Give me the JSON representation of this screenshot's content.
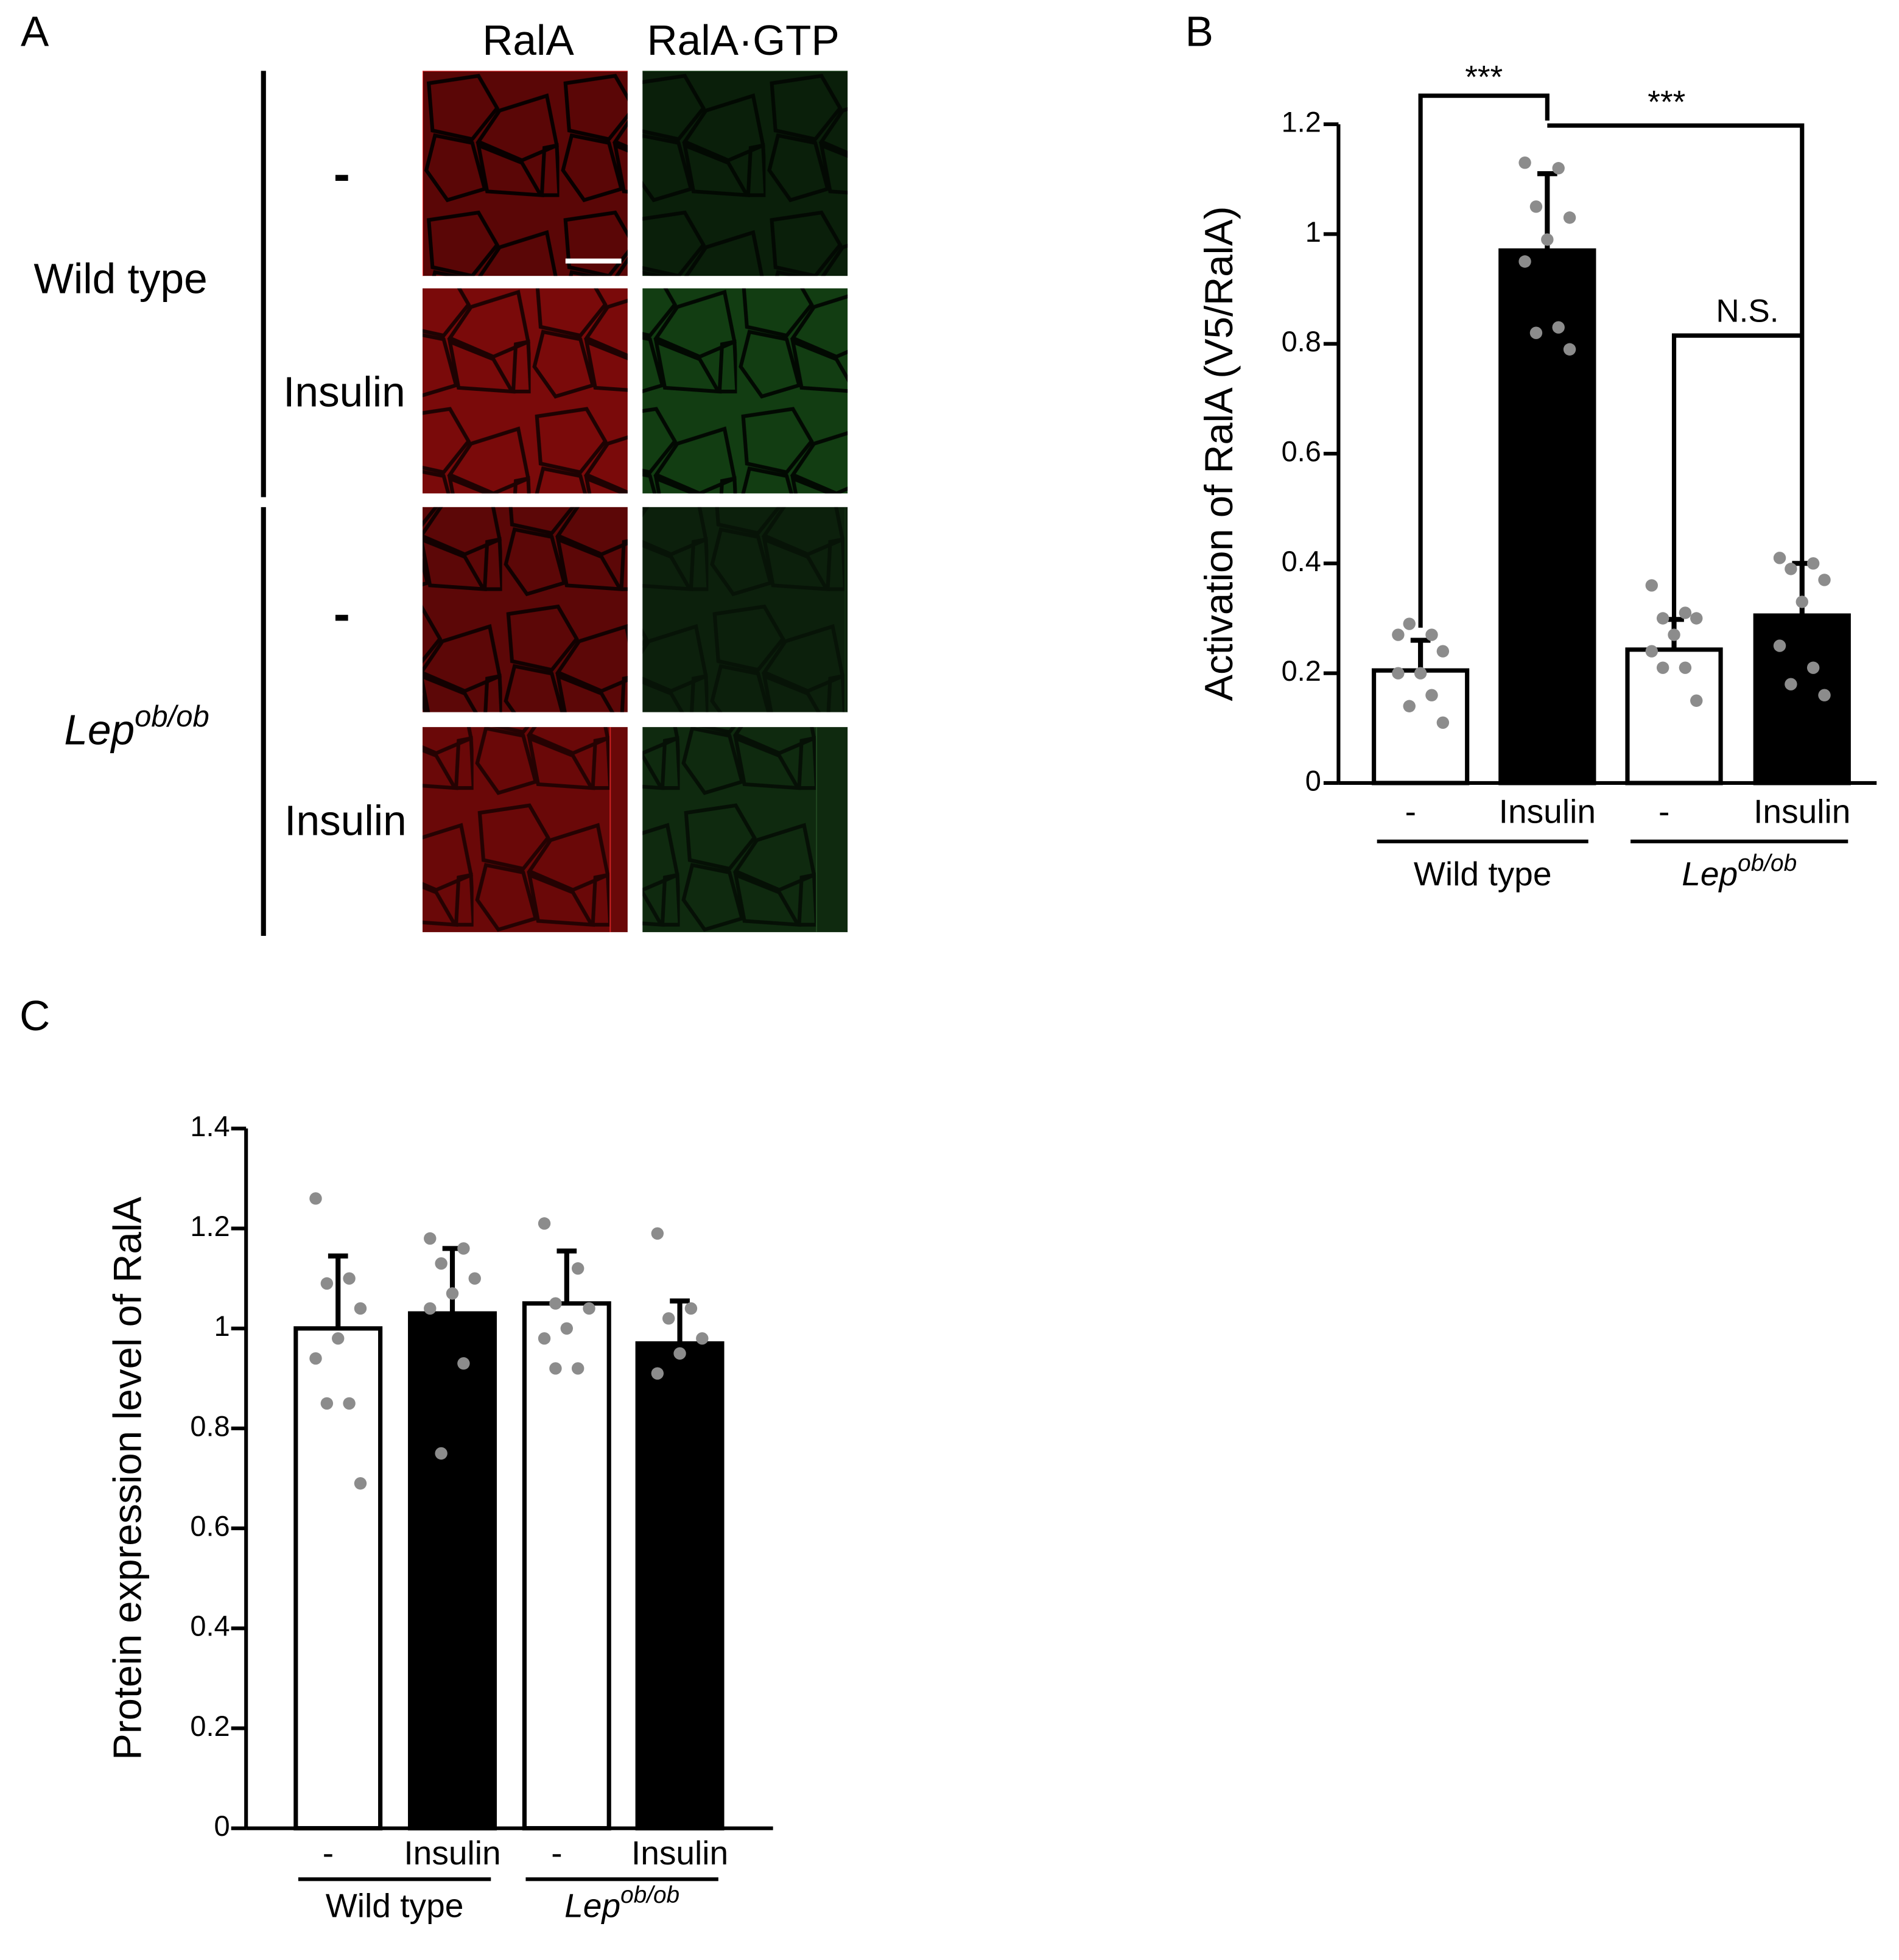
{
  "panel_a": {
    "panel": "A",
    "columns": [
      "RalA",
      "RalA·GTP"
    ],
    "groups": [
      {
        "label": "Wild type",
        "rows": [
          "-",
          "Insulin"
        ]
      },
      {
        "label": "Lep",
        "label_sup": "ob/ob",
        "rows": [
          "-",
          "Insulin"
        ]
      }
    ]
  },
  "chart_data": [
    {
      "type": "bar",
      "panel": "B",
      "y_label": "Activation of RalA (V5/RalA)",
      "categories": [
        "-",
        "Insulin",
        "-",
        "Insulin"
      ],
      "groups": [
        {
          "label": "Wild type"
        },
        {
          "label": "Lep",
          "label_sup": "ob/ob"
        }
      ],
      "values": [
        0.205,
        0.97,
        0.243,
        0.305
      ],
      "errors": [
        0.055,
        0.14,
        0.055,
        0.095
      ],
      "colors": [
        "#ffffff",
        "#000000",
        "#ffffff",
        "#000000"
      ],
      "points": [
        [
          0.27,
          0.27,
          0.29,
          0.24,
          0.2,
          0.2,
          0.16,
          0.14,
          0.11
        ],
        [
          1.13,
          1.12,
          1.05,
          1.03,
          0.99,
          0.95,
          0.83,
          0.82,
          0.79
        ],
        [
          0.36,
          0.31,
          0.3,
          0.3,
          0.27,
          0.24,
          0.21,
          0.21,
          0.15
        ],
        [
          0.41,
          0.4,
          0.39,
          0.37,
          0.33,
          0.25,
          0.21,
          0.18,
          0.16
        ]
      ],
      "point_color": "#8c8c8c",
      "ylim": [
        0,
        1.2
      ],
      "yticks": [
        0,
        0.2,
        0.4,
        0.6,
        0.8,
        1,
        1.2
      ],
      "annotations": [
        {
          "text": "***"
        },
        {
          "text": "***"
        },
        {
          "text": "N.S."
        }
      ]
    },
    {
      "type": "bar",
      "panel": "C",
      "y_label": "Protein expression level of RalA",
      "categories": [
        "-",
        "Insulin",
        "-",
        "Insulin"
      ],
      "groups": [
        {
          "label": "Wild type"
        },
        {
          "label": "Lep",
          "label_sup": "ob/ob"
        }
      ],
      "values": [
        1.0,
        1.03,
        1.05,
        0.97
      ],
      "errors": [
        0.145,
        0.13,
        0.105,
        0.085
      ],
      "colors": [
        "#ffffff",
        "#000000",
        "#ffffff",
        "#000000"
      ],
      "points": [
        [
          1.26,
          1.1,
          1.09,
          1.04,
          0.98,
          0.94,
          0.85,
          0.85,
          0.69
        ],
        [
          1.18,
          1.16,
          1.13,
          1.1,
          1.07,
          1.04,
          0.93,
          0.75
        ],
        [
          1.21,
          1.12,
          1.05,
          1.04,
          1.0,
          0.98,
          0.92,
          0.92
        ],
        [
          1.19,
          1.04,
          1.02,
          0.98,
          0.95,
          0.91
        ]
      ],
      "point_color": "#8c8c8c",
      "ylim": [
        0,
        1.4
      ],
      "yticks": [
        0,
        0.2,
        0.4,
        0.6,
        0.8,
        1,
        1.2,
        1.4
      ]
    }
  ]
}
